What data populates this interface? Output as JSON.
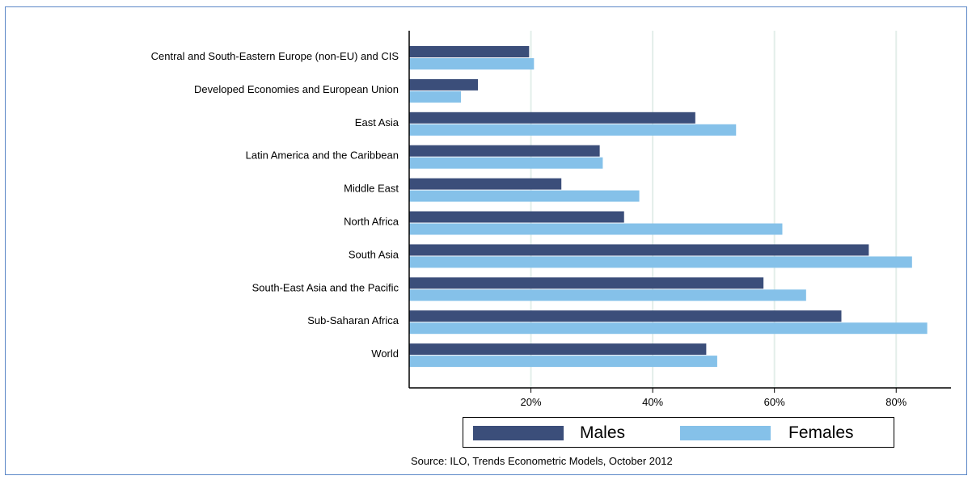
{
  "chart_data": {
    "type": "bar",
    "orientation": "horizontal",
    "categories": [
      "Central and South-Eastern Europe (non-EU) and CIS",
      "Developed Economies and European Union",
      "East Asia",
      "Latin America and the Caribbean",
      "Middle East",
      "North Africa",
      "South Asia",
      "South-East Asia and the Pacific",
      "Sub-Saharan Africa",
      "World"
    ],
    "series": [
      {
        "name": "Males",
        "color": "#3b4e7a",
        "values": [
          19.7,
          11.3,
          47.0,
          31.3,
          25.0,
          35.3,
          75.5,
          58.2,
          71.0,
          48.8
        ]
      },
      {
        "name": "Females",
        "color": "#85c1e9",
        "values": [
          20.5,
          8.5,
          53.7,
          31.8,
          37.8,
          61.3,
          82.6,
          65.2,
          85.1,
          50.6
        ]
      }
    ],
    "xlim": [
      0,
      89
    ],
    "xticks": [
      20,
      40,
      60,
      80
    ],
    "xtick_labels": [
      "20%",
      "40%",
      "60%",
      "80%"
    ],
    "grid": true,
    "legend_position": "bottom",
    "source": "Source: ILO, Trends Econometric Models, October 2012"
  }
}
